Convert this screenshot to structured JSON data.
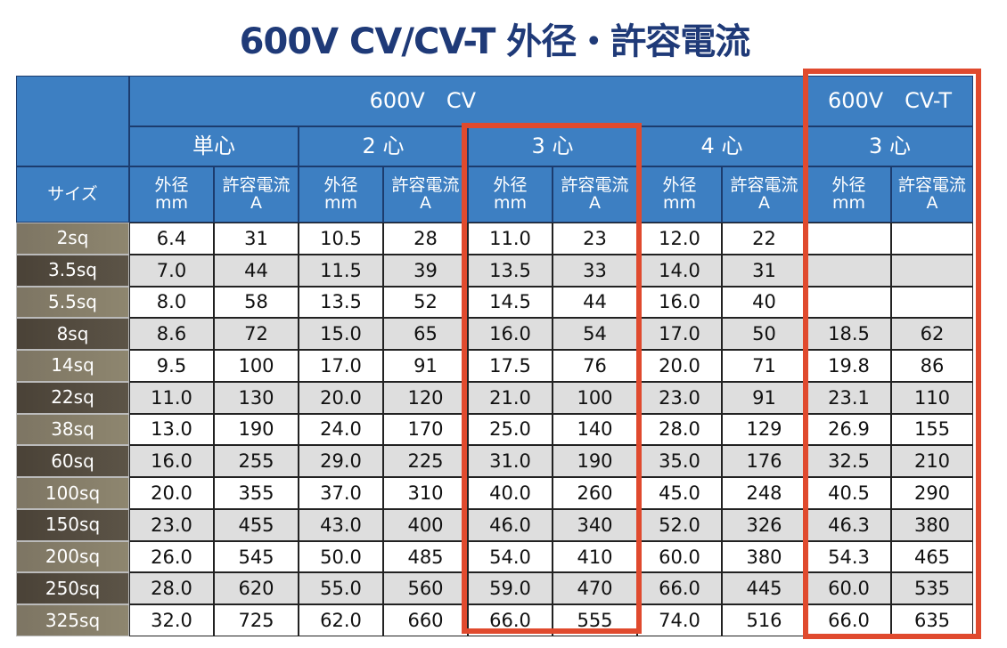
{
  "title": "600V CV/CV-T 外径・許容電流",
  "groups": [
    "600V　CV",
    "600V　CV-T"
  ],
  "subgroups": [
    "単心",
    "2 心",
    "3 心",
    "4 心",
    "3 心"
  ],
  "size_header": "サイズ",
  "columns": [
    {
      "label": "外径",
      "unit": "mm"
    },
    {
      "label": "許容電流",
      "unit": "A"
    },
    {
      "label": "外径",
      "unit": "mm"
    },
    {
      "label": "許容電流",
      "unit": "A"
    },
    {
      "label": "外径",
      "unit": "mm"
    },
    {
      "label": "許容電流",
      "unit": "A"
    },
    {
      "label": "外径",
      "unit": "mm"
    },
    {
      "label": "許容電流",
      "unit": "A"
    },
    {
      "label": "外径",
      "unit": "mm"
    },
    {
      "label": "許容電流",
      "unit": "A"
    }
  ],
  "rows": [
    {
      "size": "2sq",
      "cells": [
        "6.4",
        "31",
        "10.5",
        "28",
        "11.0",
        "23",
        "12.0",
        "22",
        null,
        null
      ]
    },
    {
      "size": "3.5sq",
      "cells": [
        "7.0",
        "44",
        "11.5",
        "39",
        "13.5",
        "33",
        "14.0",
        "31",
        null,
        null
      ]
    },
    {
      "size": "5.5sq",
      "cells": [
        "8.0",
        "58",
        "13.5",
        "52",
        "14.5",
        "44",
        "16.0",
        "40",
        null,
        null
      ]
    },
    {
      "size": "8sq",
      "cells": [
        "8.6",
        "72",
        "15.0",
        "65",
        "16.0",
        "54",
        "17.0",
        "50",
        "18.5",
        "62"
      ]
    },
    {
      "size": "14sq",
      "cells": [
        "9.5",
        "100",
        "17.0",
        "91",
        "17.5",
        "76",
        "20.0",
        "71",
        "19.8",
        "86"
      ]
    },
    {
      "size": "22sq",
      "cells": [
        "11.0",
        "130",
        "20.0",
        "120",
        "21.0",
        "100",
        "23.0",
        "91",
        "23.1",
        "110"
      ]
    },
    {
      "size": "38sq",
      "cells": [
        "13.0",
        "190",
        "24.0",
        "170",
        "25.0",
        "140",
        "28.0",
        "129",
        "26.9",
        "155"
      ]
    },
    {
      "size": "60sq",
      "cells": [
        "16.0",
        "255",
        "29.0",
        "225",
        "31.0",
        "190",
        "35.0",
        "176",
        "32.5",
        "210"
      ]
    },
    {
      "size": "100sq",
      "cells": [
        "20.0",
        "355",
        "37.0",
        "310",
        "40.0",
        "260",
        "45.0",
        "248",
        "40.5",
        "290"
      ]
    },
    {
      "size": "150sq",
      "cells": [
        "23.0",
        "455",
        "43.0",
        "400",
        "46.0",
        "340",
        "52.0",
        "326",
        "46.3",
        "380"
      ]
    },
    {
      "size": "200sq",
      "cells": [
        "26.0",
        "545",
        "50.0",
        "485",
        "54.0",
        "410",
        "60.0",
        "380",
        "54.3",
        "465"
      ]
    },
    {
      "size": "250sq",
      "cells": [
        "28.0",
        "620",
        "55.0",
        "560",
        "59.0",
        "470",
        "66.0",
        "445",
        "60.0",
        "535"
      ]
    },
    {
      "size": "325sq",
      "cells": [
        "32.0",
        "725",
        "62.0",
        "660",
        "66.0",
        "555",
        "74.0",
        "516",
        "66.0",
        "635"
      ]
    }
  ]
}
